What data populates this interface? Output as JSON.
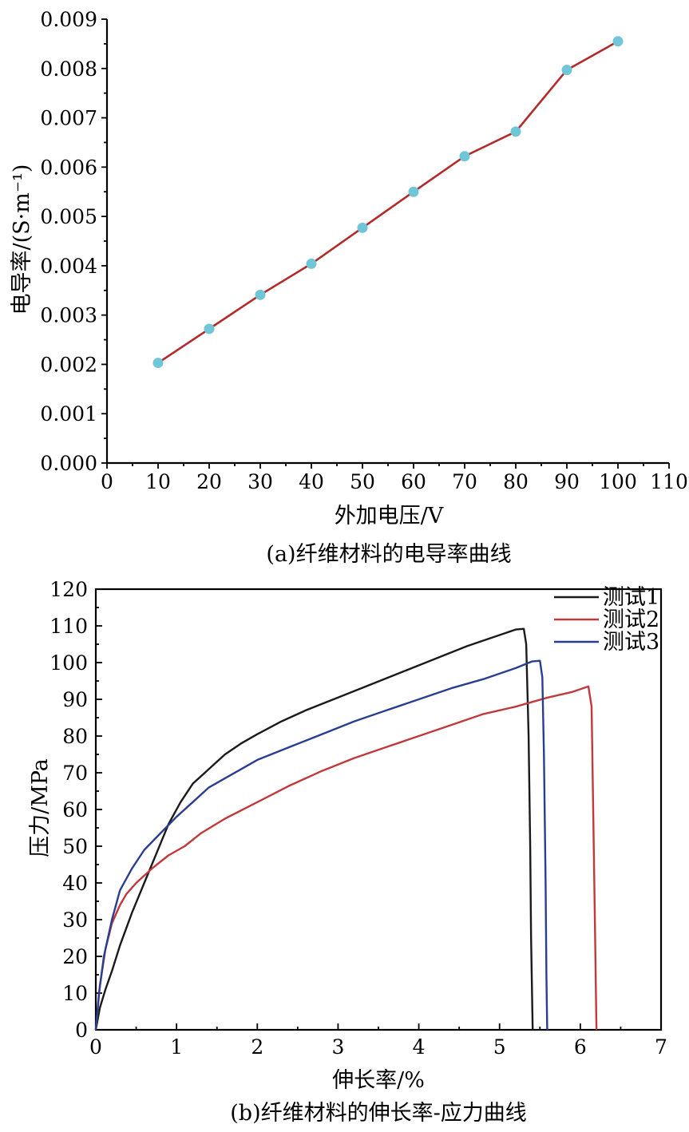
{
  "chart_data": [
    {
      "type": "line",
      "caption": "(a)纤维材料的电导率曲线",
      "xlabel": "外加电压/V",
      "ylabel": "电导率/(S·m⁻¹)",
      "xlim": [
        0,
        110
      ],
      "ylim": [
        0,
        0.009
      ],
      "x_ticks": [
        "0",
        "10",
        "20",
        "30",
        "40",
        "50",
        "60",
        "70",
        "80",
        "90",
        "100",
        "110"
      ],
      "y_ticks": [
        "0.000",
        "0.001",
        "0.002",
        "0.003",
        "0.004",
        "0.005",
        "0.006",
        "0.007",
        "0.008",
        "0.009"
      ],
      "grid": false,
      "line_color": "#b22a2a",
      "marker_color": "#6ec6d6",
      "x": [
        10,
        20,
        30,
        40,
        50,
        60,
        70,
        80,
        90,
        100
      ],
      "y": [
        0.00203,
        0.00272,
        0.00341,
        0.00404,
        0.00477,
        0.0055,
        0.00622,
        0.00672,
        0.00797,
        0.00855
      ]
    },
    {
      "type": "line",
      "caption": "(b)纤维材料的伸长率-应力曲线",
      "xlabel": "伸长率/%",
      "ylabel": "压力/MPa",
      "xlim": [
        0,
        7
      ],
      "ylim": [
        0,
        120
      ],
      "x_ticks": [
        "0",
        "1",
        "2",
        "3",
        "4",
        "5",
        "6",
        "7"
      ],
      "y_ticks": [
        "0",
        "10",
        "20",
        "30",
        "40",
        "50",
        "60",
        "70",
        "80",
        "90",
        "100",
        "110",
        "120"
      ],
      "grid": false,
      "legend_position": "top-right",
      "series": [
        {
          "name": "测试1",
          "color": "#1a1a1a",
          "points": [
            [
              0,
              0
            ],
            [
              0.05,
              6
            ],
            [
              0.12,
              11
            ],
            [
              0.2,
              16
            ],
            [
              0.3,
              23
            ],
            [
              0.45,
              32
            ],
            [
              0.6,
              40
            ],
            [
              0.75,
              48
            ],
            [
              0.9,
              56
            ],
            [
              1.05,
              62
            ],
            [
              1.2,
              67
            ],
            [
              1.4,
              71
            ],
            [
              1.6,
              75
            ],
            [
              1.8,
              78
            ],
            [
              2.0,
              80.5
            ],
            [
              2.3,
              84
            ],
            [
              2.6,
              87
            ],
            [
              3.0,
              90.5
            ],
            [
              3.4,
              94
            ],
            [
              3.8,
              97.5
            ],
            [
              4.2,
              101
            ],
            [
              4.6,
              104.5
            ],
            [
              5.0,
              107.5
            ],
            [
              5.2,
              109
            ],
            [
              5.3,
              109.2
            ],
            [
              5.33,
              105
            ],
            [
              5.36,
              80
            ],
            [
              5.38,
              50
            ],
            [
              5.39,
              25
            ],
            [
              5.41,
              0
            ]
          ]
        },
        {
          "name": "测试2",
          "color": "#c0393b",
          "points": [
            [
              0,
              0
            ],
            [
              0.05,
              12
            ],
            [
              0.12,
              22
            ],
            [
              0.2,
              29
            ],
            [
              0.3,
              34
            ],
            [
              0.38,
              37
            ],
            [
              0.5,
              40
            ],
            [
              0.7,
              44
            ],
            [
              0.9,
              47.5
            ],
            [
              1.1,
              50
            ],
            [
              1.3,
              53.5
            ],
            [
              1.6,
              57.5
            ],
            [
              2.0,
              62
            ],
            [
              2.4,
              66.5
            ],
            [
              2.8,
              70.5
            ],
            [
              3.2,
              74
            ],
            [
              3.6,
              77
            ],
            [
              4.0,
              80
            ],
            [
              4.4,
              83
            ],
            [
              4.8,
              86
            ],
            [
              5.2,
              88
            ],
            [
              5.6,
              90.5
            ],
            [
              5.9,
              92
            ],
            [
              6.1,
              93.5
            ],
            [
              6.14,
              88
            ],
            [
              6.16,
              60
            ],
            [
              6.18,
              30
            ],
            [
              6.2,
              0
            ]
          ]
        },
        {
          "name": "测试3",
          "color": "#2a3e8f",
          "points": [
            [
              0,
              0
            ],
            [
              0.04,
              10
            ],
            [
              0.1,
              20
            ],
            [
              0.2,
              30
            ],
            [
              0.3,
              38
            ],
            [
              0.45,
              44
            ],
            [
              0.6,
              49
            ],
            [
              0.8,
              53.5
            ],
            [
              1.0,
              58
            ],
            [
              1.2,
              62
            ],
            [
              1.4,
              66
            ],
            [
              1.6,
              68.5
            ],
            [
              1.8,
              71
            ],
            [
              2.0,
              73.5
            ],
            [
              2.4,
              77
            ],
            [
              2.8,
              80.5
            ],
            [
              3.2,
              84
            ],
            [
              3.6,
              87
            ],
            [
              4.0,
              90
            ],
            [
              4.4,
              93
            ],
            [
              4.8,
              95.5
            ],
            [
              5.2,
              98.5
            ],
            [
              5.4,
              100.3
            ],
            [
              5.5,
              100.5
            ],
            [
              5.53,
              96
            ],
            [
              5.55,
              75
            ],
            [
              5.57,
              40
            ],
            [
              5.58,
              15
            ],
            [
              5.59,
              0
            ]
          ]
        }
      ]
    }
  ]
}
